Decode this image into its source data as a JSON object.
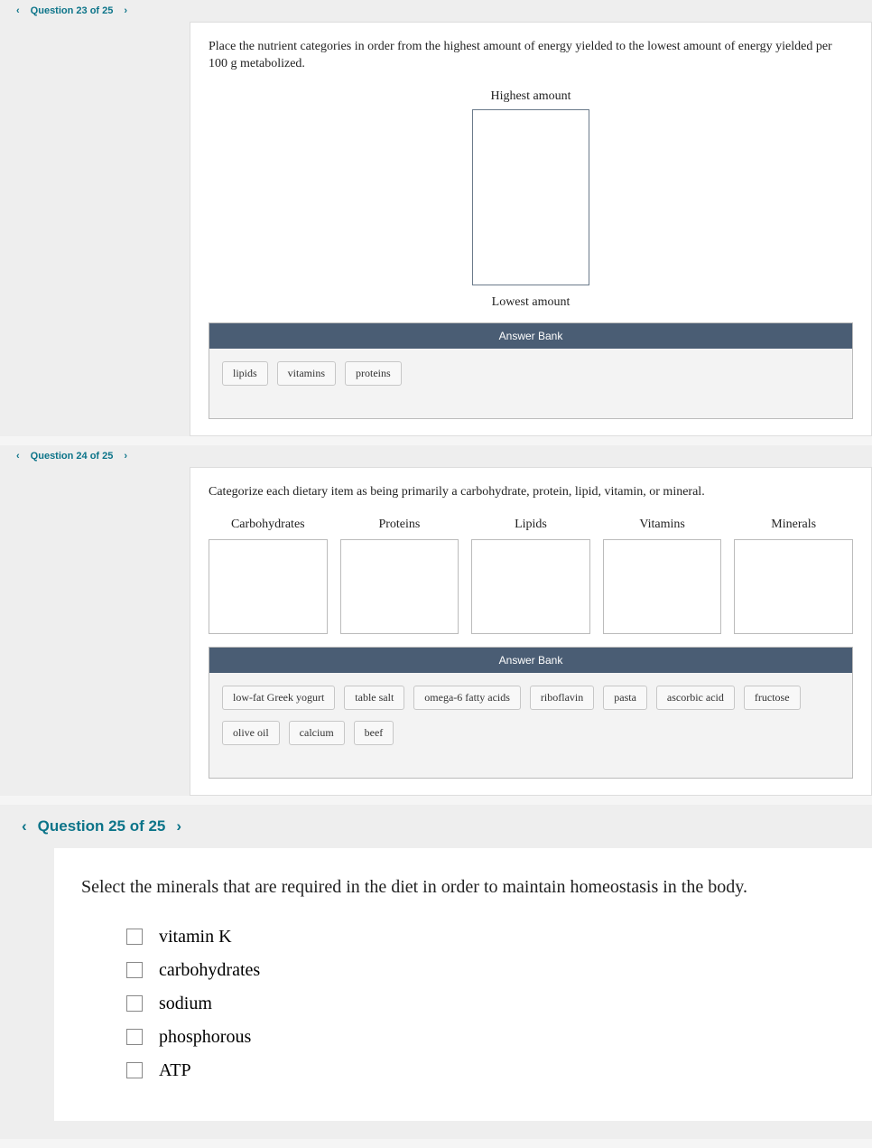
{
  "q23": {
    "header_label": "Question 23 of 25",
    "prompt": "Place the nutrient categories in order from the highest amount of energy yielded to the lowest amount of energy yielded per 100 g metabolized.",
    "top_label": "Highest amount",
    "bottom_label": "Lowest amount",
    "bank_title": "Answer Bank",
    "chips": [
      "lipids",
      "vitamins",
      "proteins"
    ]
  },
  "q24": {
    "header_label": "Question 24 of 25",
    "prompt": "Categorize each dietary item as being primarily a carbohydrate, protein, lipid, vitamin, or mineral.",
    "categories": [
      "Carbohydrates",
      "Proteins",
      "Lipids",
      "Vitamins",
      "Minerals"
    ],
    "bank_title": "Answer Bank",
    "chips": [
      "low-fat Greek yogurt",
      "table salt",
      "omega-6 fatty acids",
      "riboflavin",
      "pasta",
      "ascorbic acid",
      "fructose",
      "olive oil",
      "calcium",
      "beef"
    ]
  },
  "q25": {
    "header_label": "Question 25 of 25",
    "prompt": "Select the minerals that are required in the diet in order to maintain homeostasis in the body.",
    "choices": [
      "vitamin K",
      "carbohydrates",
      "sodium",
      "phosphorous",
      "ATP"
    ]
  }
}
